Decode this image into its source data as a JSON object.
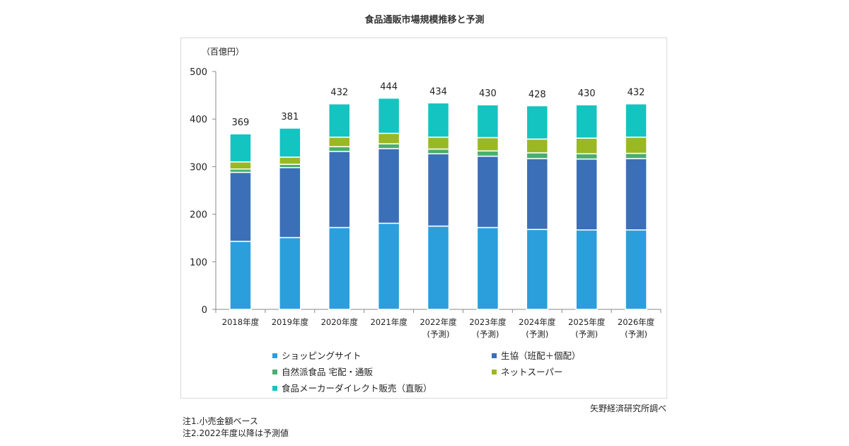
{
  "title": "食品通販市場規模推移と予測",
  "source": "矢野経済研究所調べ",
  "notes": [
    "注1.小売金額ベース",
    "注2.2022年度以降は予測値"
  ],
  "chart_data": {
    "type": "bar",
    "stacked": true,
    "title": "食品通販市場規模推移と予測",
    "ylabel": "（百億円）",
    "xlabel": "",
    "ylim": [
      0,
      500
    ],
    "yticks": [
      0,
      100,
      200,
      300,
      400,
      500
    ],
    "grid": false,
    "legend_position": "bottom",
    "categories": [
      [
        "2018年度"
      ],
      [
        "2019年度"
      ],
      [
        "2020年度"
      ],
      [
        "2021年度"
      ],
      [
        "2022年度",
        "(予測)"
      ],
      [
        "2023年度",
        "(予測)"
      ],
      [
        "2024年度",
        "(予測)"
      ],
      [
        "2025年度",
        "(予測)"
      ],
      [
        "2026年度",
        "(予測)"
      ]
    ],
    "totals": [
      369,
      381,
      432,
      444,
      434,
      430,
      428,
      430,
      432
    ],
    "series": [
      {
        "name": "ショッピングサイト",
        "color": "#2a9fdc",
        "values": [
          143,
          151,
          172,
          181,
          175,
          172,
          168,
          167,
          167
        ]
      },
      {
        "name": "生協（班配＋個配）",
        "color": "#3b6fb8",
        "values": [
          145,
          147,
          160,
          157,
          152,
          150,
          149,
          149,
          150
        ]
      },
      {
        "name": "自然派食品 宅配・通販",
        "color": "#4aae6e",
        "values": [
          7,
          7,
          10,
          10,
          10,
          11,
          12,
          11,
          11
        ]
      },
      {
        "name": "ネットスーパー",
        "color": "#9ab823",
        "values": [
          15,
          15,
          20,
          22,
          25,
          28,
          29,
          33,
          34
        ]
      },
      {
        "name": "食品メーカーダイレクト販売（直販）",
        "color": "#14c4c0",
        "values": [
          59,
          61,
          70,
          74,
          72,
          69,
          70,
          70,
          70
        ]
      }
    ]
  }
}
